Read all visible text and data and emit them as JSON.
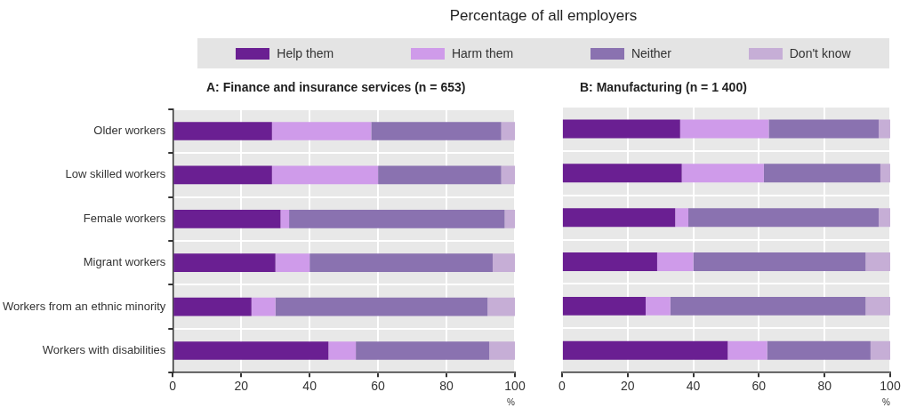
{
  "chart_data": [
    {
      "type": "bar",
      "orientation": "horizontal",
      "stacked": true,
      "title": "Percentage of all employers",
      "subtitle": "A: Finance and insurance services (n = 653)",
      "xlabel": "%",
      "categories": [
        "Older workers",
        "Low skilled workers",
        "Female workers",
        "Migrant workers",
        "Workers from an ethnic minority",
        "Workers with disabilities"
      ],
      "series": [
        {
          "name": "Help them",
          "color": "#6a1f92",
          "values": [
            29,
            29,
            31.5,
            30,
            23,
            45.5
          ]
        },
        {
          "name": "Harm them",
          "color": "#cf9bea",
          "values": [
            29,
            31,
            2.5,
            10,
            7,
            8
          ]
        },
        {
          "name": "Neither",
          "color": "#8a72b0",
          "values": [
            38,
            36,
            63,
            53.5,
            62,
            39
          ]
        },
        {
          "name": "Don't know",
          "color": "#c6aed6",
          "values": [
            4,
            4,
            3,
            6.5,
            8,
            7.5
          ]
        }
      ],
      "xlim": [
        0,
        100
      ],
      "xticks": [
        0,
        20,
        40,
        60,
        80,
        100
      ],
      "grid": true,
      "legend": "top"
    },
    {
      "type": "bar",
      "orientation": "horizontal",
      "stacked": true,
      "subtitle": "B: Manufacturing (n = 1 400)",
      "xlabel": "%",
      "categories": [
        null,
        null,
        null,
        null,
        null,
        null
      ],
      "series": [
        {
          "color": "#6a1f92",
          "values": [
            36,
            36.5,
            34.5,
            29,
            25.5,
            50.5
          ]
        },
        {
          "color": "#cf9bea",
          "values": [
            27,
            25,
            4,
            11,
            7.5,
            12
          ]
        },
        {
          "color": "#8a72b0",
          "values": [
            33.5,
            35.5,
            58,
            52.5,
            59.5,
            31.5
          ]
        },
        {
          "color": "#c6aed6",
          "values": [
            3.5,
            3,
            3.5,
            7.5,
            7.5,
            6
          ]
        }
      ],
      "xlim": [
        0,
        100
      ],
      "xticks": [
        0,
        20,
        40,
        60,
        80,
        100
      ],
      "grid": true,
      "tick_labels": "x"
    }
  ]
}
